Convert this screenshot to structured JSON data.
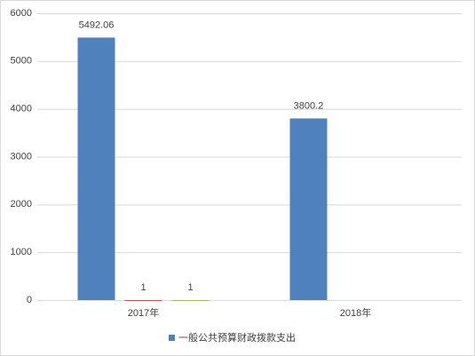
{
  "chart_data": {
    "type": "bar",
    "categories": [
      "2017年",
      "2018年"
    ],
    "series": [
      {
        "name": "一般公共预算财政拨款支出",
        "color": "#4f81bd",
        "values": [
          5492.06,
          3800.2
        ]
      },
      {
        "color": "#c0504d",
        "values": [
          1,
          null
        ]
      },
      {
        "color": "#9bbb59",
        "values": [
          1,
          null
        ]
      }
    ],
    "ylim": [
      0,
      6000
    ],
    "yticks": [
      0,
      1000,
      2000,
      3000,
      4000,
      5000,
      6000
    ],
    "grid": true,
    "data_labels": true,
    "legend": "bottom"
  }
}
